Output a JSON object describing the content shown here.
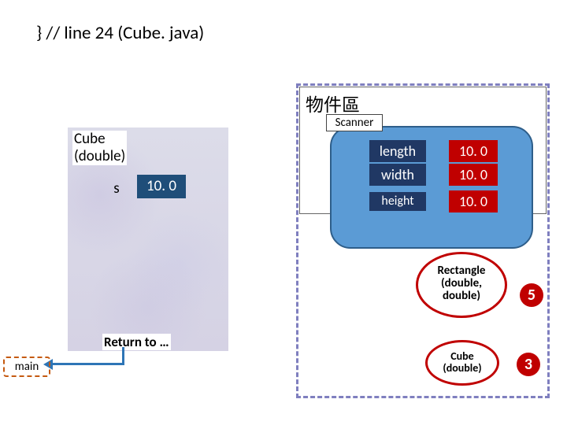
{
  "title": "} // line 24 (Cube. java)",
  "stack": {
    "label_line1": "Cube",
    "label_line2": "(double)",
    "var_name": "s",
    "var_value": "10. 0",
    "return_label": "Return to …",
    "main_label": "main",
    "bg_color": "#d8d6e6"
  },
  "heap": {
    "title": "物件區",
    "scanner_label": "Scanner",
    "border_color": "#7f7fbf",
    "object": {
      "bg_color": "#5b9bd5",
      "fields": {
        "length": {
          "name": "length",
          "value": "10. 0"
        },
        "width": {
          "name": "width",
          "value": "10. 0"
        },
        "height": {
          "name": "height",
          "value": "10. 0"
        }
      },
      "field_name_bg": "#203864",
      "field_value_bg": "#c00000"
    },
    "callouts": {
      "rectangle": {
        "line1": "Rectangle",
        "line2": "(double,",
        "line3": "double)",
        "badge": "5"
      },
      "cube": {
        "line1": "Cube",
        "line2": "(double)",
        "badge": "3"
      }
    }
  },
  "colors": {
    "arrow": "#2e75b6",
    "red": "#c00000",
    "dark_blue": "#1f4e79",
    "main_border": "#c55a11"
  }
}
